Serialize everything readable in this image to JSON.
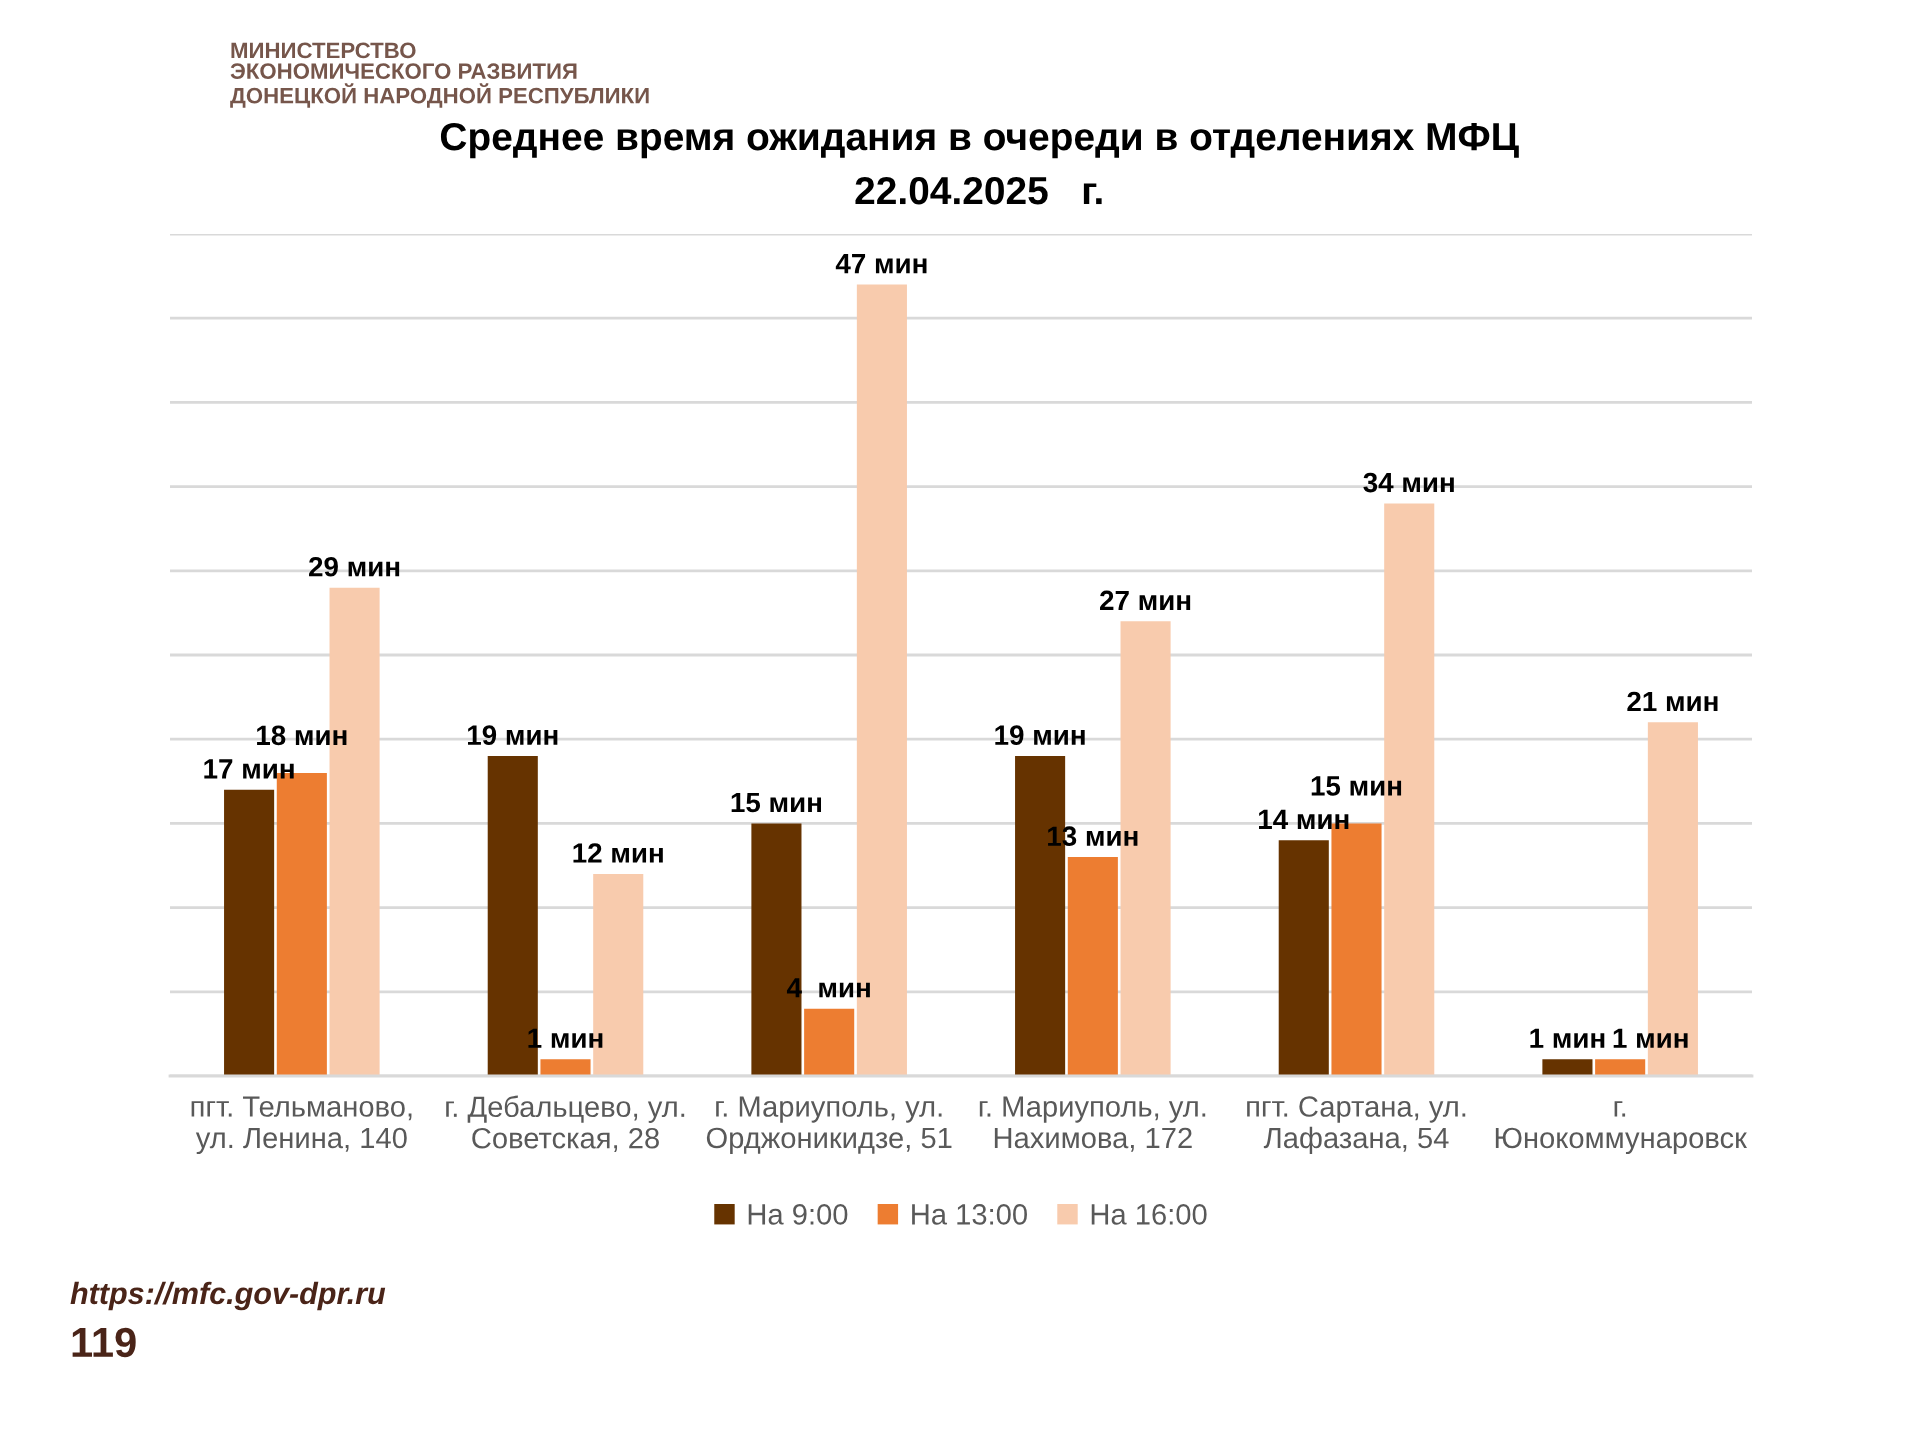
{
  "chart_data": {
    "type": "bar",
    "title": "Среднее время ожидания в очереди в отделениях МФЦ",
    "subtitle": "22.04.2025   г.",
    "categories": [
      "пгт. Тельманово,\nул. Ленина, 140",
      "г. Дебальцево, ул.\nСоветская, 28",
      "г. Мариуполь, ул.\nОрджоникидзе, 51",
      "г. Мариуполь, ул.\nНахимова, 172",
      "пгт. Сартана, ул.\nЛафазана, 54",
      "г.\nЮнокоммунаровск"
    ],
    "series": [
      {
        "name": "На 9:00",
        "color": "#663300",
        "values": [
          17,
          19,
          15,
          19,
          14,
          1
        ],
        "value_labels": [
          "17 мин",
          "19 мин",
          "15 мин",
          "19 мин",
          "14 мин",
          "1 мин"
        ]
      },
      {
        "name": "На 13:00",
        "color": "#ed7d31",
        "values": [
          18,
          1,
          4,
          13,
          15,
          1
        ],
        "value_labels": [
          "18 мин",
          "1 мин",
          "4  мин",
          "13 мин",
          "15 мин",
          "1 мин"
        ]
      },
      {
        "name": "На 16:00",
        "color": "#f8cbad",
        "values": [
          29,
          12,
          47,
          27,
          34,
          21
        ],
        "value_labels": [
          "29 мин",
          "12 мин",
          "47 мин",
          "27 мин",
          "34 мин",
          "21 мин"
        ]
      }
    ],
    "ylim": [
      0,
      50
    ],
    "yticks": [
      {
        "value": 0,
        "label": null
      },
      {
        "value": 5,
        "label": null
      },
      {
        "value": 10,
        "label": null
      },
      {
        "value": 15,
        "label": null
      },
      {
        "value": 20,
        "label": null
      },
      {
        "value": 25,
        "label": null
      },
      {
        "value": 30,
        "label": null
      },
      {
        "value": 35,
        "label": null
      },
      {
        "value": 40,
        "label": null
      },
      {
        "value": 45,
        "label": null
      },
      {
        "value": 50,
        "label": null
      }
    ],
    "tick_labels": "x",
    "grid": "y",
    "legend": "bottom",
    "annotations": [
      "МИНИСТЕРСТВО\nЭКОНОМИЧЕСКОГО РАЗВИТИЯ\nДОНЕЦКОЙ НАРОДНОЙ РЕСПУБЛИКИ",
      "https://mfc.gov-dpr.ru",
      "119"
    ]
  }
}
